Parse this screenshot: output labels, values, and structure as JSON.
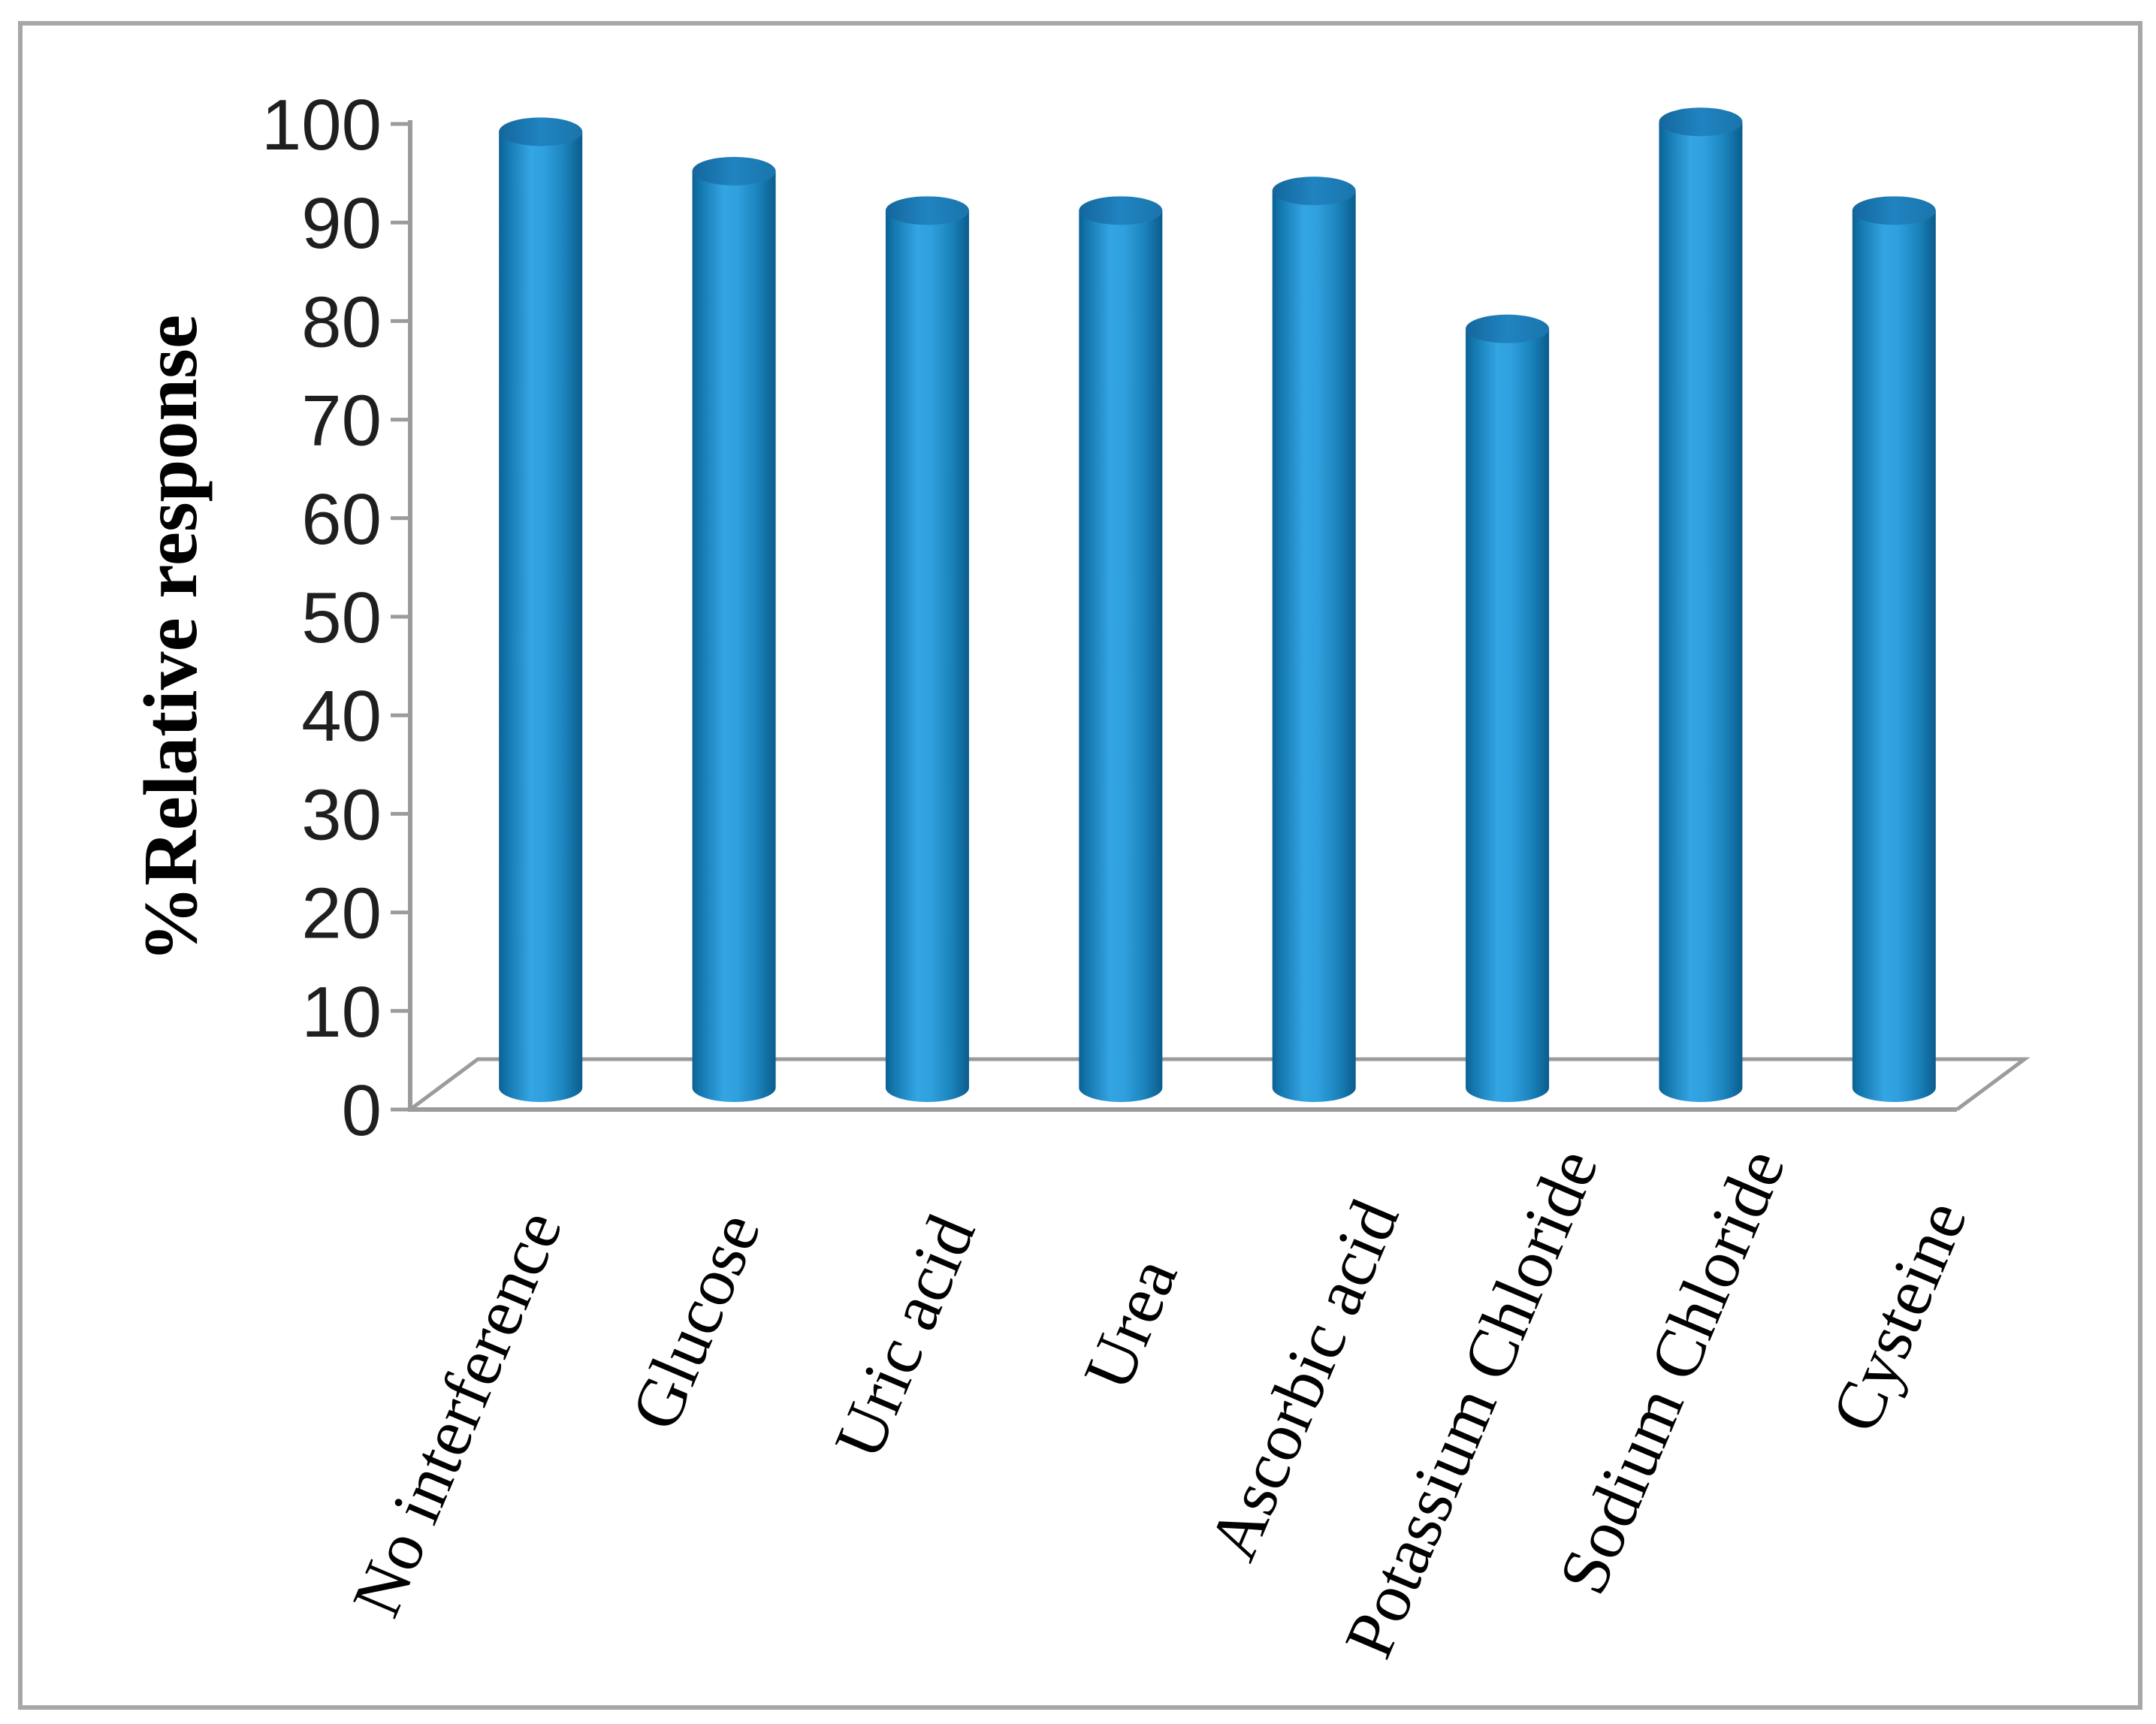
{
  "figure": {
    "background_color": "#ffffff",
    "border_color": "#a7a7a7"
  },
  "chart_data": {
    "type": "bar",
    "style": "3d-cylinder",
    "title": "",
    "xlabel": "",
    "ylabel": "%Relative response",
    "categories": [
      "No interference",
      "Glucose",
      "Uric acid",
      "Urea",
      "Ascorbic acid",
      "Potassium Chloride",
      "Sodium Chloride",
      "Cysteine"
    ],
    "values": [
      97,
      93,
      89,
      89,
      91,
      77,
      98,
      89
    ],
    "ylim": [
      0,
      100
    ],
    "yticks": [
      0,
      10,
      20,
      30,
      40,
      50,
      60,
      70,
      80,
      90,
      100
    ],
    "grid": false,
    "legend": false,
    "colors": {
      "bar_mid": "#34a5e3",
      "bar_edge_dark": "#0d6091",
      "bar_edge_deep": "#0b5c8c",
      "bar_top_dark": "#14669c",
      "bar_top_mid": "#2084c1",
      "axis_line": "#9b9b9b",
      "tick_text": "#1f1f1f",
      "label_text": "#000000"
    }
  }
}
